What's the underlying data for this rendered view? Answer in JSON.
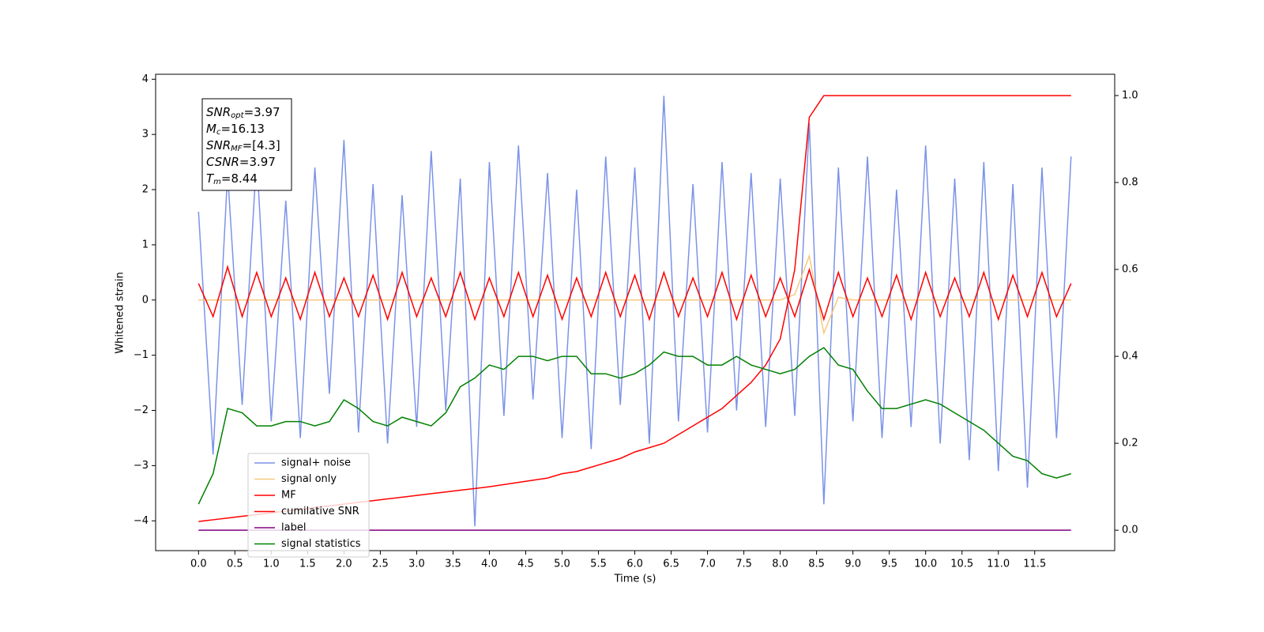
{
  "chart_data": {
    "type": "line",
    "xlabel": "Time (s)",
    "ylabel": "Whitened strain",
    "xlim": [
      -0.59,
      12.6
    ],
    "ylim": [
      -4.54,
      4.09
    ],
    "y2lim": [
      -0.047,
      1.049
    ],
    "xticks": [
      {
        "value": 0,
        "label": "0.0"
      },
      0.5,
      {
        "value": 1,
        "label": "1.0"
      },
      1.5,
      {
        "value": 2,
        "label": "2.0"
      },
      2.5,
      {
        "value": 3,
        "label": "3.0"
      },
      3.5,
      {
        "value": 4,
        "label": "4.0"
      },
      4.5,
      {
        "value": 5,
        "label": "5.0"
      },
      5.5,
      {
        "value": 6,
        "label": "6.0"
      },
      6.5,
      {
        "value": 7,
        "label": "7.0"
      },
      7.5,
      {
        "value": 8,
        "label": "8.0"
      },
      8.5,
      {
        "value": 9,
        "label": "9.0"
      },
      9.5,
      {
        "value": 10,
        "label": "10.0"
      },
      10.5,
      {
        "value": 11,
        "label": "11.0"
      },
      11.5
    ],
    "yticks": [
      {
        "value": -4,
        "label": "−4"
      },
      {
        "value": -3,
        "label": "−3"
      },
      {
        "value": -2,
        "label": "−2"
      },
      {
        "value": -1,
        "label": "−1"
      },
      0,
      1,
      2,
      3,
      4
    ],
    "y2ticks": [
      {
        "value": 0,
        "label": "0.0"
      },
      0.2,
      0.4,
      0.6,
      0.8,
      {
        "value": 1,
        "label": "1.0"
      }
    ],
    "legend": "lower left",
    "annotations": [
      {
        "main": "SNR",
        "sub": "opt",
        "rest": "=3.97"
      },
      {
        "main": "M",
        "sub": "c",
        "rest": "=16.13"
      },
      {
        "main": "SNR",
        "sub": "MF",
        "rest": "=[4.3]"
      },
      {
        "main": "CSNR",
        "sub": "",
        "rest": "=3.97"
      },
      {
        "main": "T",
        "sub": "m",
        "rest": "=8.44"
      }
    ],
    "x": [
      0,
      0.2,
      0.4,
      0.6,
      0.8,
      1,
      1.2,
      1.4,
      1.6,
      1.8,
      2,
      2.2,
      2.4,
      2.6,
      2.8,
      3,
      3.2,
      3.4,
      3.6,
      3.8,
      4,
      4.2,
      4.4,
      4.6,
      4.8,
      5,
      5.2,
      5.4,
      5.6,
      5.8,
      6,
      6.2,
      6.4,
      6.6,
      6.8,
      7,
      7.2,
      7.4,
      7.6,
      7.8,
      8,
      8.2,
      8.4,
      8.6,
      8.8,
      9,
      9.2,
      9.4,
      9.6,
      9.8,
      10,
      10.2,
      10.4,
      10.6,
      10.8,
      11,
      11.2,
      11.4,
      11.6,
      11.8,
      12
    ],
    "series": [
      {
        "name": "signal+ noise",
        "color": "#7b93e8",
        "axis": "y",
        "values": [
          1.6,
          -2.8,
          2.3,
          -1.9,
          2.6,
          -2.2,
          1.8,
          -2.5,
          2.4,
          -1.7,
          2.9,
          -2.4,
          2.1,
          -2.6,
          1.9,
          -2.3,
          2.7,
          -2.0,
          2.2,
          -4.1,
          2.5,
          -2.1,
          2.8,
          -1.8,
          2.3,
          -2.5,
          2.0,
          -2.7,
          2.6,
          -1.9,
          2.4,
          -2.6,
          3.7,
          -2.2,
          2.1,
          -2.4,
          2.5,
          -2.0,
          2.3,
          -2.3,
          2.2,
          -2.1,
          3.2,
          -3.7,
          2.4,
          -2.2,
          2.6,
          -2.5,
          2.0,
          -2.3,
          2.8,
          -2.6,
          2.2,
          -2.9,
          2.5,
          -3.1,
          2.1,
          -3.4,
          2.4,
          -2.5,
          2.6
        ]
      },
      {
        "name": "signal only",
        "color": "#f7c97e",
        "axis": "y",
        "values": [
          0,
          0,
          0,
          0,
          0,
          0,
          0,
          0,
          0,
          0,
          0,
          0,
          0,
          0,
          0,
          0,
          0,
          0,
          0,
          0,
          0,
          0,
          0,
          0,
          0,
          0,
          0,
          0,
          0,
          0,
          0,
          0,
          0,
          0,
          0,
          0,
          0,
          0,
          0,
          0,
          0,
          0.1,
          0.8,
          -0.6,
          0.05,
          0,
          0,
          0,
          0,
          0,
          0,
          0,
          0,
          0,
          0,
          0,
          0,
          0,
          0,
          0,
          0
        ]
      },
      {
        "name": "MF",
        "color": "#ff0000",
        "axis": "y",
        "values": [
          0.3,
          -0.3,
          0.6,
          -0.3,
          0.5,
          -0.3,
          0.4,
          -0.35,
          0.5,
          -0.3,
          0.4,
          -0.3,
          0.45,
          -0.35,
          0.5,
          -0.3,
          0.4,
          -0.3,
          0.5,
          -0.35,
          0.4,
          -0.3,
          0.5,
          -0.3,
          0.45,
          -0.35,
          0.4,
          -0.3,
          0.5,
          -0.3,
          0.45,
          -0.35,
          0.5,
          -0.3,
          0.4,
          -0.3,
          0.5,
          -0.35,
          0.45,
          -0.3,
          0.4,
          -0.3,
          0.55,
          -0.35,
          0.5,
          -0.3,
          0.4,
          -0.3,
          0.45,
          -0.35,
          0.5,
          -0.3,
          0.4,
          -0.3,
          0.5,
          -0.35,
          0.45,
          -0.3,
          0.5,
          -0.3,
          0.3
        ]
      },
      {
        "name": "cumilative SNR",
        "color": "#ff0000",
        "axis": "y2",
        "values": [
          0.02,
          0.024,
          0.028,
          0.032,
          0.036,
          0.04,
          0.044,
          0.048,
          0.052,
          0.056,
          0.06,
          0.064,
          0.068,
          0.072,
          0.076,
          0.08,
          0.084,
          0.088,
          0.092,
          0.096,
          0.1,
          0.105,
          0.11,
          0.115,
          0.12,
          0.13,
          0.135,
          0.145,
          0.155,
          0.165,
          0.18,
          0.19,
          0.2,
          0.22,
          0.24,
          0.26,
          0.28,
          0.31,
          0.34,
          0.38,
          0.44,
          0.6,
          0.95,
          1,
          1,
          1,
          1,
          1,
          1,
          1,
          1,
          1,
          1,
          1,
          1,
          1,
          1,
          1,
          1,
          1,
          1
        ]
      },
      {
        "name": "label",
        "color": "#800080",
        "axis": "y2",
        "values": [
          0,
          0,
          0,
          0,
          0,
          0,
          0,
          0,
          0,
          0,
          0,
          0,
          0,
          0,
          0,
          0,
          0,
          0,
          0,
          0,
          0,
          0,
          0,
          0,
          0,
          0,
          0,
          0,
          0,
          0,
          0,
          0,
          0,
          0,
          0,
          0,
          0,
          0,
          0,
          0,
          0,
          0,
          0,
          0,
          0,
          0,
          0,
          0,
          0,
          0,
          0,
          0,
          0,
          0,
          0,
          0,
          0,
          0,
          0,
          0,
          0
        ]
      },
      {
        "name": "signal statistics",
        "color": "#008000",
        "axis": "y2",
        "values": [
          0.06,
          0.13,
          0.28,
          0.27,
          0.24,
          0.24,
          0.25,
          0.25,
          0.24,
          0.25,
          0.3,
          0.28,
          0.25,
          0.24,
          0.26,
          0.25,
          0.24,
          0.27,
          0.33,
          0.35,
          0.38,
          0.37,
          0.4,
          0.4,
          0.39,
          0.4,
          0.4,
          0.36,
          0.36,
          0.35,
          0.36,
          0.38,
          0.41,
          0.4,
          0.4,
          0.38,
          0.38,
          0.4,
          0.38,
          0.37,
          0.36,
          0.37,
          0.4,
          0.42,
          0.38,
          0.37,
          0.32,
          0.28,
          0.28,
          0.29,
          0.3,
          0.29,
          0.27,
          0.25,
          0.23,
          0.2,
          0.17,
          0.16,
          0.13,
          0.12,
          0.13
        ]
      }
    ]
  }
}
